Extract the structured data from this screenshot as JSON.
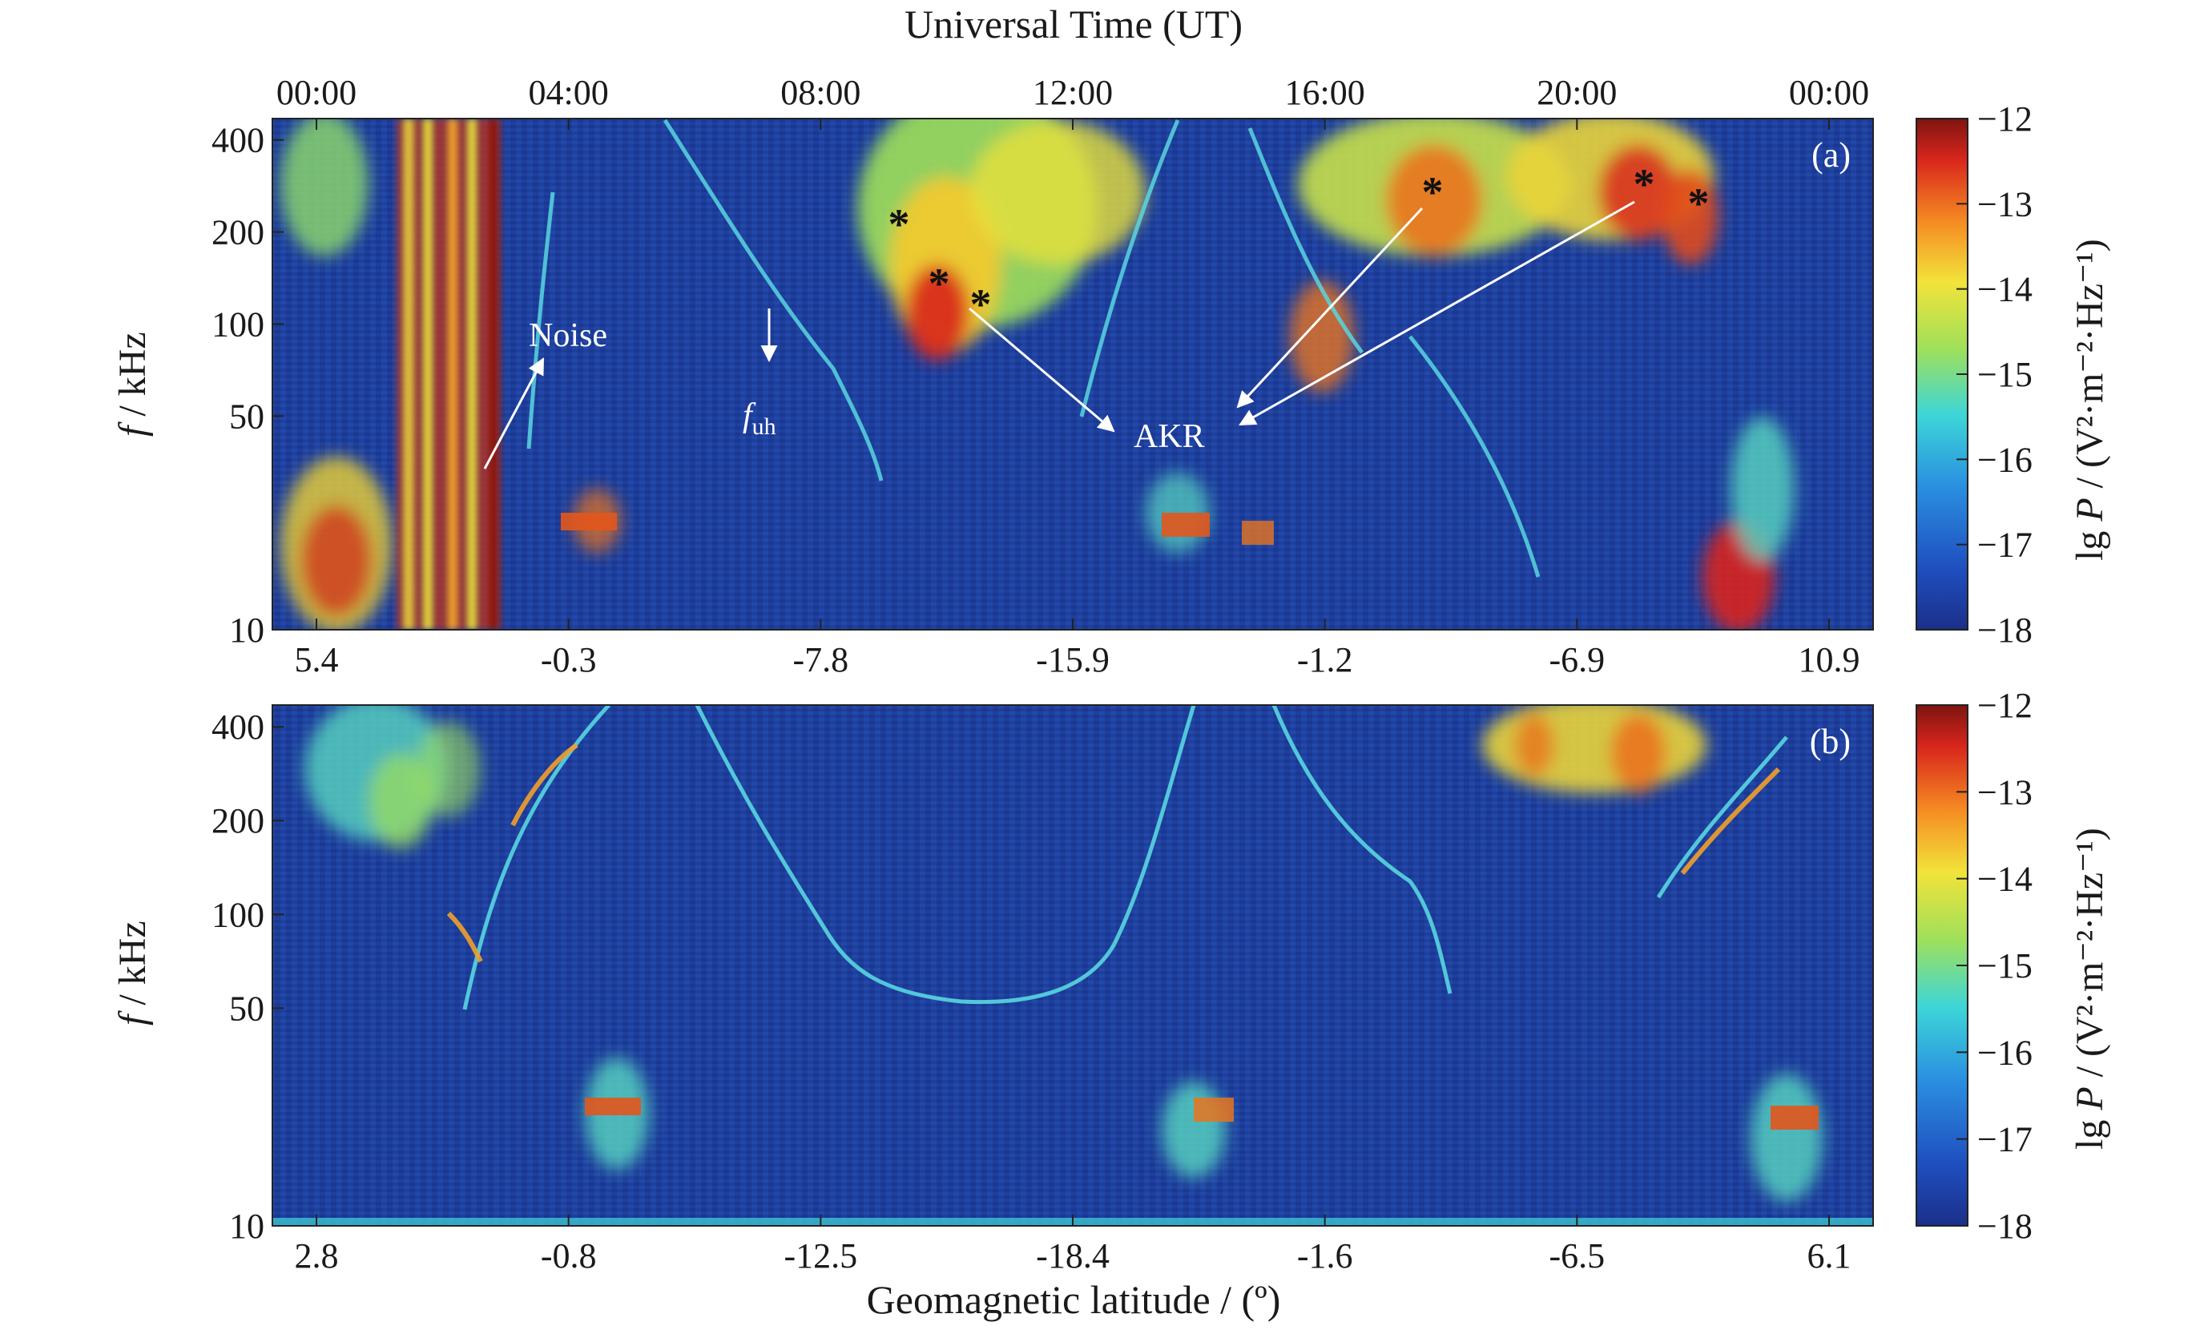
{
  "figure": {
    "top_axis_title": "Universal Time (UT)",
    "bottom_axis_title": "Geomagnetic latitude / (º)",
    "ylabel_italic": "f",
    "ylabel_rest": " / kHz",
    "colorbar_label_prefix": "lg ",
    "colorbar_label_var": "P",
    "colorbar_label_units": " / (V²·m⁻²·Hz⁻¹)"
  },
  "chart_data": [
    {
      "type": "heatmap",
      "panel_label": "(a)",
      "x_top_ticks": [
        "00:00",
        "04:00",
        "08:00",
        "12:00",
        "16:00",
        "20:00",
        "00:00"
      ],
      "x_bottom_ticks": [
        "5.4",
        "-0.3",
        "-7.8",
        "-15.9",
        "-1.2",
        "-6.9",
        "10.9"
      ],
      "y_ticks": [
        10,
        50,
        100,
        200,
        400
      ],
      "y_scale": "log",
      "ylim": [
        10,
        470
      ],
      "colorbar": {
        "ticks": [
          "-12",
          "-13",
          "-14",
          "-15",
          "-16",
          "-17",
          "-18"
        ],
        "range": [
          -18,
          -12
        ],
        "colormap": "jet"
      },
      "annotations": [
        "Noise",
        "f",
        "uh",
        "AKR"
      ],
      "markers": [
        "*",
        "*",
        "*",
        "*",
        "*",
        "*"
      ]
    },
    {
      "type": "heatmap",
      "panel_label": "(b)",
      "x_bottom_ticks": [
        "2.8",
        "-0.8",
        "-12.5",
        "-18.4",
        "-1.6",
        "-6.5",
        "6.1"
      ],
      "y_ticks": [
        10,
        50,
        100,
        200,
        400
      ],
      "y_scale": "log",
      "ylim": [
        10,
        470
      ],
      "colorbar": {
        "ticks": [
          "-12",
          "-13",
          "-14",
          "-15",
          "-16",
          "-17",
          "-18"
        ],
        "range": [
          -18,
          -12
        ],
        "colormap": "jet"
      }
    }
  ],
  "colors": {
    "background_low": "#1b3f9a",
    "axis": "#222222",
    "annotation": "#ffffff"
  }
}
